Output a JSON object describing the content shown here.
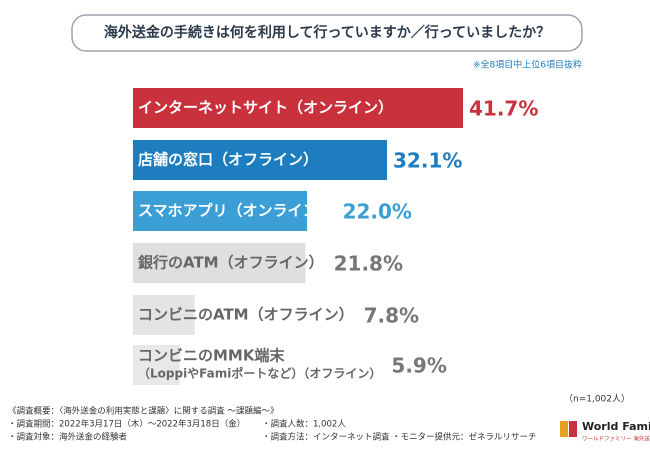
{
  "chart_data": {
    "type": "bar",
    "orientation": "horizontal",
    "title": "海外送金の手続きは何を利用して行っていますか／行っていましたか？",
    "note": "※全8項目中上位6項目抜粋",
    "sample": "（n=1,002人）",
    "categories": [
      [
        "インターネットサイト（オンライン）"
      ],
      [
        "店舗の窓口（オフライン）"
      ],
      [
        "スマホアプリ（オンライン）"
      ],
      [
        "銀行のATM（オフライン）"
      ],
      [
        "コンビニのATM（オフライン）"
      ],
      [
        "コンビニのMMK端末",
        "（LoppiやFamiポートなど）（オフライン）"
      ]
    ],
    "values": [
      41.7,
      32.1,
      22.0,
      21.8,
      7.8,
      5.9
    ],
    "value_labels": [
      "41.7%",
      "32.1%",
      "22.0%",
      "21.8%",
      "7.8%",
      "5.9%"
    ],
    "colors": [
      "#c9323d",
      "#1e7dbf",
      "#3b9fd6",
      "#a3a3a3",
      "#b3b3b3",
      "#bcbcbc"
    ],
    "footer": {
      "summary": "《調査概要：〈海外送金の利用実態と課題〉に関する調査 ～課題編～》",
      "items": [
        "・調査期間：2022年3月17日（木）～2022年3月18日（金）",
        "・調査対象：海外送金の経験者",
        "・調査人数：1,002人",
        "・調査方法：インターネット調査",
        "・モニター提供元：ゼネラルリサーチ"
      ],
      "logo": "World Family",
      "logo_sub": "ワールドファミリー 海外送金"
    }
  }
}
